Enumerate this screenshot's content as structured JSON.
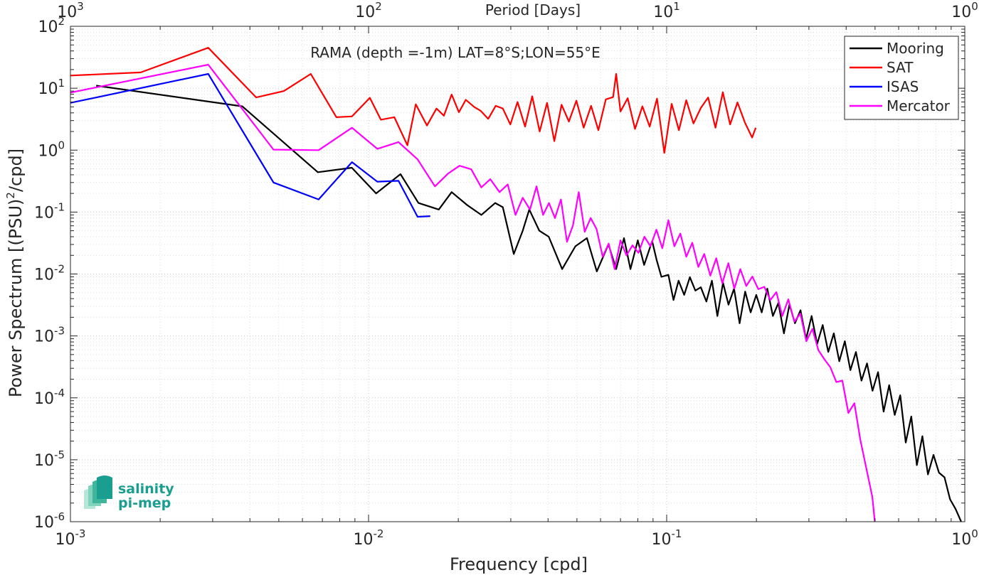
{
  "chart_data": {
    "type": "line",
    "title": "RAMA (depth =-1m) LAT=8°S;LON=55°E",
    "xlabel": "Frequency [cpd]",
    "ylabel_main": "Power Spectrum [(PSU)",
    "ylabel_exp": "2",
    "ylabel_tail": "/cpd]",
    "x2label": "Period [Days]",
    "xscale": "log",
    "yscale": "log",
    "xlim": [
      0.001,
      1
    ],
    "ylim": [
      1e-06,
      100
    ],
    "grid": true,
    "legend_position": "top-right",
    "x_ticks": [
      {
        "value": 0.001,
        "base": "10",
        "exp": "-3"
      },
      {
        "value": 0.01,
        "base": "10",
        "exp": "-2"
      },
      {
        "value": 0.1,
        "base": "10",
        "exp": "-1"
      },
      {
        "value": 1,
        "base": "10",
        "exp": "0"
      }
    ],
    "x2_ticks": [
      {
        "value": 0.001,
        "base": "10",
        "exp": "3"
      },
      {
        "value": 0.01,
        "base": "10",
        "exp": "2"
      },
      {
        "value": 0.1,
        "base": "10",
        "exp": "1"
      },
      {
        "value": 1,
        "base": "10",
        "exp": "0"
      }
    ],
    "y_ticks": [
      {
        "value": 100,
        "base": "10",
        "exp": "2"
      },
      {
        "value": 10,
        "base": "10",
        "exp": "1"
      },
      {
        "value": 1,
        "base": "10",
        "exp": "0"
      },
      {
        "value": 0.1,
        "base": "10",
        "exp": "-1"
      },
      {
        "value": 0.01,
        "base": "10",
        "exp": "-2"
      },
      {
        "value": 0.001,
        "base": "10",
        "exp": "-3"
      },
      {
        "value": 0.0001,
        "base": "10",
        "exp": "-4"
      },
      {
        "value": 1e-05,
        "base": "10",
        "exp": "-5"
      },
      {
        "value": 1e-06,
        "base": "10",
        "exp": "-6"
      }
    ],
    "series": [
      {
        "name": "Mooring",
        "color": "#000000",
        "x": [
          0.00122,
          0.00377,
          0.00676,
          0.00879,
          0.0106,
          0.0128,
          0.0147,
          0.0172,
          0.019,
          0.0214,
          0.0239,
          0.0266,
          0.0282,
          0.0307,
          0.0329,
          0.0346,
          0.0374,
          0.0402,
          0.0446,
          0.0494,
          0.054,
          0.0583,
          0.0638,
          0.0677,
          0.0719,
          0.0756,
          0.08,
          0.084,
          0.0894,
          0.0925,
          0.096,
          0.1013,
          0.1054,
          0.1096,
          0.1145,
          0.1196,
          0.1248,
          0.1302,
          0.1359,
          0.1418,
          0.148,
          0.1545,
          0.1612,
          0.1683,
          0.1756,
          0.1833,
          0.1913,
          0.1997,
          0.2084,
          0.2175,
          0.2271,
          0.237,
          0.2473,
          0.2582,
          0.2694,
          0.2812,
          0.2935,
          0.3063,
          0.3197,
          0.3337,
          0.3483,
          0.3635,
          0.3794,
          0.396,
          0.4133,
          0.4313,
          0.4502,
          0.4699,
          0.4904,
          0.5119,
          0.5342,
          0.5576,
          0.5819,
          0.6074,
          0.6339,
          0.6616,
          0.6905,
          0.7207,
          0.7521,
          0.785,
          0.8193,
          0.8551,
          0.8925,
          0.9315,
          0.9722,
          1.0
        ],
        "y": [
          11,
          5.1,
          0.44,
          0.52,
          0.2,
          0.41,
          0.14,
          0.11,
          0.21,
          0.13,
          0.09,
          0.14,
          0.12,
          0.021,
          0.05,
          0.11,
          0.05,
          0.04,
          0.012,
          0.028,
          0.038,
          0.011,
          0.03,
          0.012,
          0.038,
          0.012,
          0.035,
          0.014,
          0.034,
          0.017,
          0.009,
          0.0097,
          0.0038,
          0.0078,
          0.0046,
          0.0089,
          0.0054,
          0.0061,
          0.0036,
          0.0078,
          0.0021,
          0.0072,
          0.0032,
          0.0058,
          0.0016,
          0.0052,
          0.0024,
          0.0046,
          0.0024,
          0.0058,
          0.0021,
          0.0034,
          0.0011,
          0.0032,
          0.0016,
          0.0026,
          0.00089,
          0.0021,
          0.00074,
          0.0015,
          0.00055,
          0.0011,
          0.00039,
          0.00082,
          0.00028,
          0.00055,
          0.00019,
          0.00036,
          0.00013,
          0.00026,
          6e-05,
          0.00016,
          5.3e-05,
          0.00011,
          1.9e-05,
          5e-05,
          8.2e-06,
          2.4e-05,
          5.8e-06,
          1.2e-05,
          6.2e-06,
          5.2e-06,
          2.3e-06,
          1.6e-06,
          1e-06,
          8e-07
        ]
      },
      {
        "name": "SAT",
        "color": "#ff0000",
        "x": [
          0.001,
          0.00172,
          0.0029,
          0.0042,
          0.0052,
          0.0064,
          0.0078,
          0.0088,
          0.0101,
          0.011,
          0.0122,
          0.0135,
          0.0144,
          0.0157,
          0.0169,
          0.0179,
          0.019,
          0.0201,
          0.0212,
          0.0226,
          0.0238,
          0.0252,
          0.0267,
          0.0282,
          0.0299,
          0.0316,
          0.0335,
          0.0354,
          0.0375,
          0.0397,
          0.042,
          0.0444,
          0.047,
          0.0498,
          0.0527,
          0.0558,
          0.059,
          0.0625,
          0.0661,
          0.0677,
          0.07,
          0.074,
          0.0783,
          0.0829,
          0.0877,
          0.0928,
          0.0982,
          0.1039,
          0.1099,
          0.1163,
          0.123,
          0.1302,
          0.1378,
          0.1458,
          0.1543,
          0.1633,
          0.1728,
          0.1829,
          0.1935,
          0.199
        ],
        "y": [
          16,
          18,
          45,
          7.1,
          9,
          17,
          3.4,
          3.5,
          7,
          3.1,
          3.4,
          1.2,
          5.5,
          2.5,
          4.7,
          3.6,
          7.9,
          4.1,
          6.5,
          5,
          4.3,
          3.2,
          5.2,
          4.7,
          2.6,
          6,
          2.4,
          7.4,
          2,
          5.8,
          1.4,
          5.4,
          2.9,
          6.3,
          2.3,
          5.2,
          2.1,
          6.6,
          7.2,
          17,
          4.2,
          6.9,
          2.2,
          5.1,
          2.4,
          6.8,
          0.9,
          5.6,
          2.1,
          6.4,
          2.7,
          4.8,
          7.1,
          2.3,
          8.6,
          2.6,
          5.9,
          2.8,
          1.6,
          2.3
        ]
      },
      {
        "name": "ISAS",
        "color": "#0000ff",
        "x": [
          0.001,
          0.0029,
          0.0048,
          0.0068,
          0.0088,
          0.0107,
          0.0126,
          0.0146,
          0.0161
        ],
        "y": [
          5.8,
          17,
          0.3,
          0.16,
          0.64,
          0.31,
          0.32,
          0.084,
          0.086
        ],
        "end_at_data": true
      },
      {
        "name": "Mercator",
        "color": "#ff00ff",
        "x": [
          0.001,
          0.0029,
          0.0048,
          0.0068,
          0.0088,
          0.0107,
          0.0126,
          0.0146,
          0.0167,
          0.0185,
          0.0202,
          0.0221,
          0.0239,
          0.0256,
          0.0275,
          0.0293,
          0.0311,
          0.0329,
          0.0348,
          0.0366,
          0.0385,
          0.0403,
          0.0422,
          0.0442,
          0.0463,
          0.0485,
          0.0507,
          0.0531,
          0.0556,
          0.0582,
          0.061,
          0.0639,
          0.0669,
          0.07,
          0.0733,
          0.0768,
          0.0804,
          0.0842,
          0.0882,
          0.0924,
          0.0967,
          0.1013,
          0.1061,
          0.1111,
          0.1164,
          0.1219,
          0.1277,
          0.1337,
          0.1401,
          0.1467,
          0.1537,
          0.161,
          0.1686,
          0.1766,
          0.185,
          0.1938,
          0.203,
          0.2126,
          0.2227,
          0.2333,
          0.2443,
          0.2559,
          0.2681,
          0.2808,
          0.2941,
          0.3081,
          0.3227,
          0.338,
          0.3541,
          0.3708,
          0.3884,
          0.4069,
          0.4262,
          0.4464,
          0.4676,
          0.4898,
          0.5
        ],
        "y": [
          8.5,
          24,
          1.02,
          1.0,
          2.3,
          1.05,
          1.35,
          0.71,
          0.26,
          0.42,
          0.56,
          0.49,
          0.25,
          0.34,
          0.21,
          0.28,
          0.09,
          0.17,
          0.11,
          0.26,
          0.09,
          0.14,
          0.08,
          0.16,
          0.033,
          0.061,
          0.21,
          0.048,
          0.08,
          0.053,
          0.019,
          0.031,
          0.012,
          0.035,
          0.02,
          0.029,
          0.022,
          0.04,
          0.028,
          0.052,
          0.026,
          0.074,
          0.028,
          0.045,
          0.019,
          0.032,
          0.013,
          0.021,
          0.0094,
          0.018,
          0.0071,
          0.015,
          0.0058,
          0.012,
          0.0064,
          0.0091,
          0.0057,
          0.0062,
          0.0038,
          0.0051,
          0.0021,
          0.0039,
          0.0017,
          0.0023,
          0.00082,
          0.0013,
          0.00059,
          0.00042,
          0.00031,
          0.00018,
          0.00019,
          5.7e-05,
          8.2e-05,
          2.1e-05,
          7.2e-06,
          2.5e-06,
          9e-07
        ]
      }
    ]
  },
  "logo": {
    "line1": "salinity",
    "line2": "pi-mep"
  }
}
